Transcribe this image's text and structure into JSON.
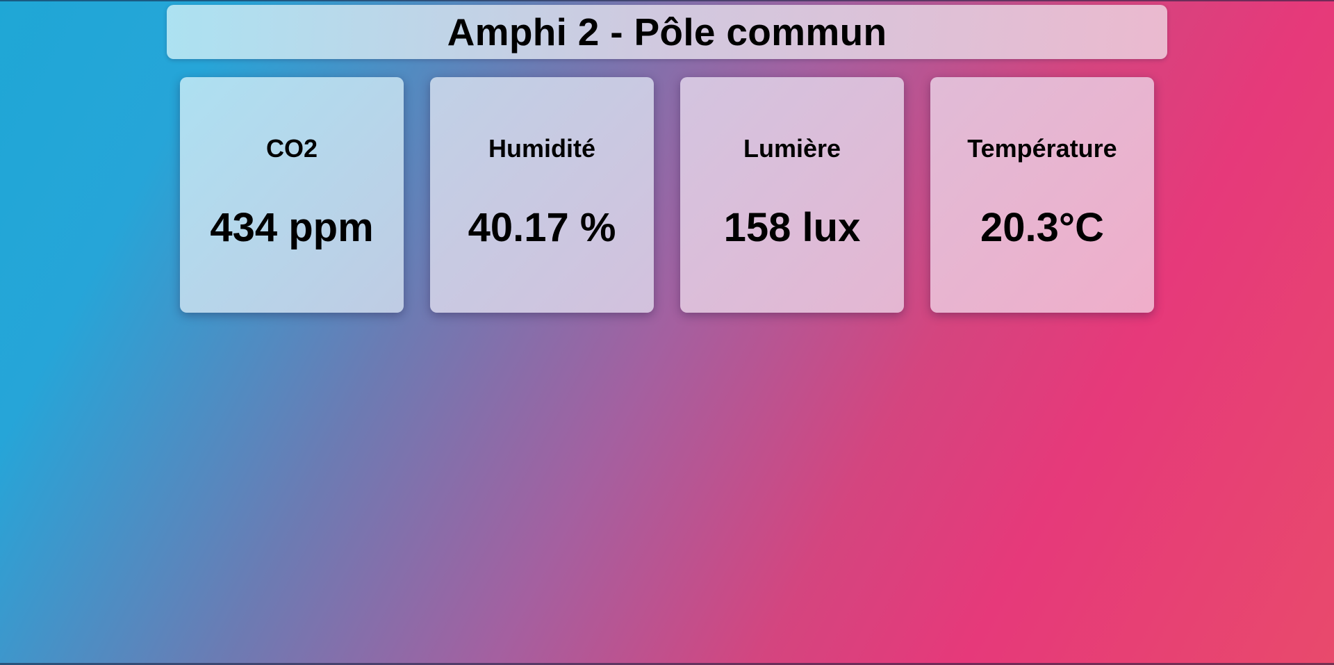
{
  "header": {
    "title": "Amphi 2 - Pôle commun"
  },
  "sensors": [
    {
      "label": "CO2",
      "value": "434 ppm"
    },
    {
      "label": "Humidité",
      "value": "40.17 %"
    },
    {
      "label": "Lumière",
      "value": "158 lux"
    },
    {
      "label": "Température",
      "value": "20.3°C"
    }
  ],
  "colors": {
    "gradient_start": "#1fa7d6",
    "gradient_mid": "#a460a0",
    "gradient_end": "#e6397a",
    "text": "#000000"
  }
}
